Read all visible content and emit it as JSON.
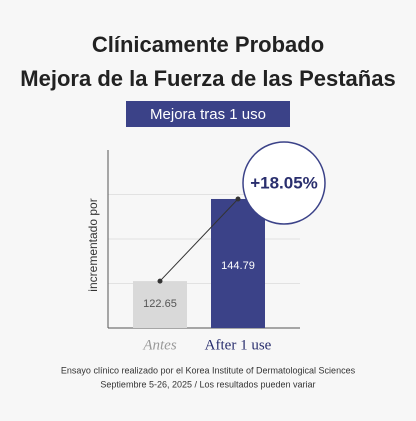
{
  "chart_data": {
    "type": "bar",
    "title": [
      "Clínicamente Probado",
      "Mejora de la Fuerza de las Pestañas"
    ],
    "subtitle": "Mejora tras 1 uso",
    "y_label": "incrementado por",
    "categories": [
      "Antes",
      "After 1 use"
    ],
    "values": [
      122.65,
      144.79
    ],
    "colors": [
      "#d9d9d9",
      "#3b4288"
    ],
    "annotation": "+18.05%",
    "ylim": [
      110,
      158
    ],
    "yticks": [
      122,
      134,
      146
    ],
    "grid": true,
    "footnotes": [
      "Ensayo clínico realizado por el Korea Institute of Dermatological Sciences",
      "Septiembre 5-26, 2025 / Los resultados pueden variar"
    ]
  }
}
